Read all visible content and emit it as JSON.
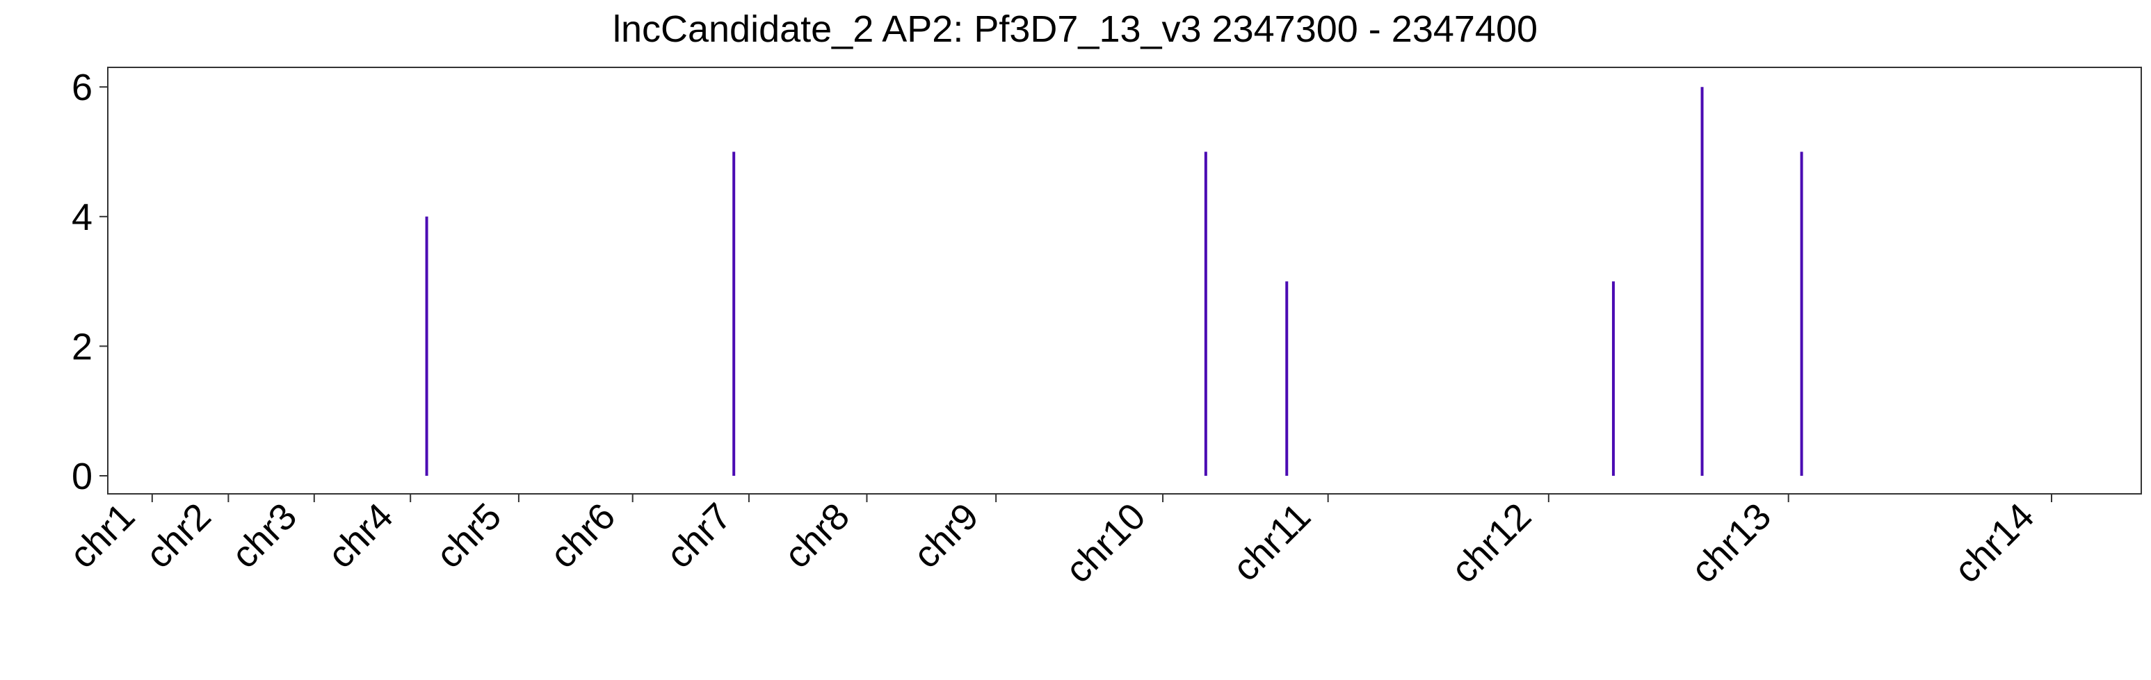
{
  "chart_data": {
    "type": "bar",
    "title": "lncCandidate_2 AP2: Pf3D7_13_v3 2347300 - 2347400",
    "xlabel": "",
    "ylabel": "",
    "ylim": [
      0,
      6.3
    ],
    "yticks": [
      0,
      2,
      4,
      6
    ],
    "grid": false,
    "bar_color": "#4B0BB3",
    "categories": [
      "chr1",
      "chr2",
      "chr3",
      "chr4",
      "chr5",
      "chr6",
      "chr7",
      "chr8",
      "chr9",
      "chr10",
      "chr11",
      "chr12",
      "chr13",
      "chr14"
    ],
    "chromosome_boundaries": [
      0,
      0.64,
      1.59,
      2.66,
      3.86,
      5.21,
      6.63,
      8.08,
      9.55,
      11.16,
      13.24,
      15.3,
      18.05,
      21.04,
      24.32
    ],
    "bars": [
      {
        "chromosome": "chr5",
        "value": 4
      },
      {
        "chromosome": "chr7",
        "value": 5
      },
      {
        "chromosome": "chr11",
        "value": 5
      },
      {
        "chromosome": "chr11",
        "value": 3
      },
      {
        "chromosome": "chr13",
        "value": 3
      },
      {
        "chromosome": "chr13",
        "value": 6
      },
      {
        "chromosome": "chr14",
        "value": 5
      }
    ]
  }
}
